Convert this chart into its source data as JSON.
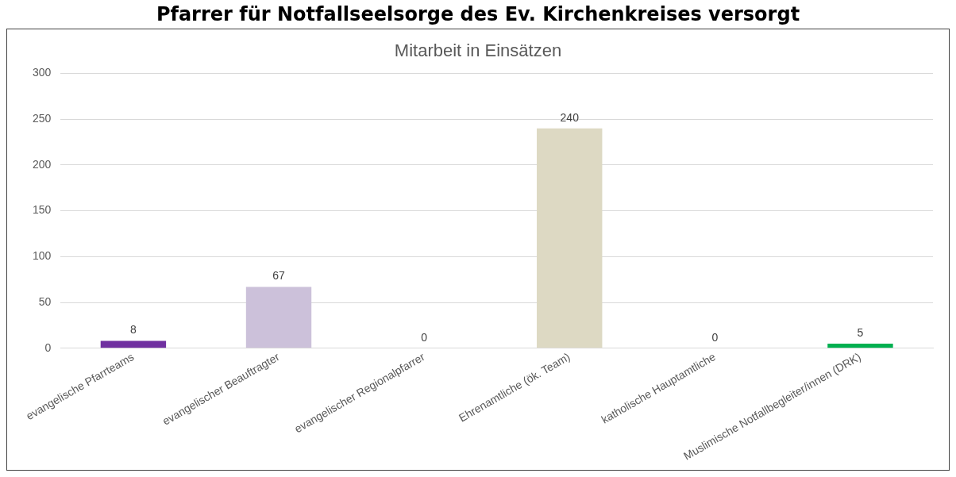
{
  "chart_data": {
    "type": "bar",
    "title": "Mitarbeit in Einsätzen",
    "annotations": [
      "Pfarrer für Notfallseelsorge des Ev. Kirchenkreises versorgt"
    ],
    "categories": [
      "evangelische Pfarrteams",
      "evangelischer Beauftragter",
      "evangelischer Regionalpfarrer",
      "Ehrenamtliche (ök. Team)",
      "katholische Hauptamtliche",
      "Muslimische Notfallbegleiter/innen (DRK)"
    ],
    "values": [
      8,
      67,
      0,
      240,
      0,
      5
    ],
    "colors": [
      "#7030a0",
      "#ccc1da",
      "#b3a2c7",
      "#ddd9c3",
      "#8064a2",
      "#00b050"
    ],
    "ylim": [
      0,
      300
    ],
    "yticks": [
      0,
      50,
      100,
      150,
      200,
      250,
      300
    ],
    "grid": "y",
    "data_labels": true,
    "legend": false
  }
}
